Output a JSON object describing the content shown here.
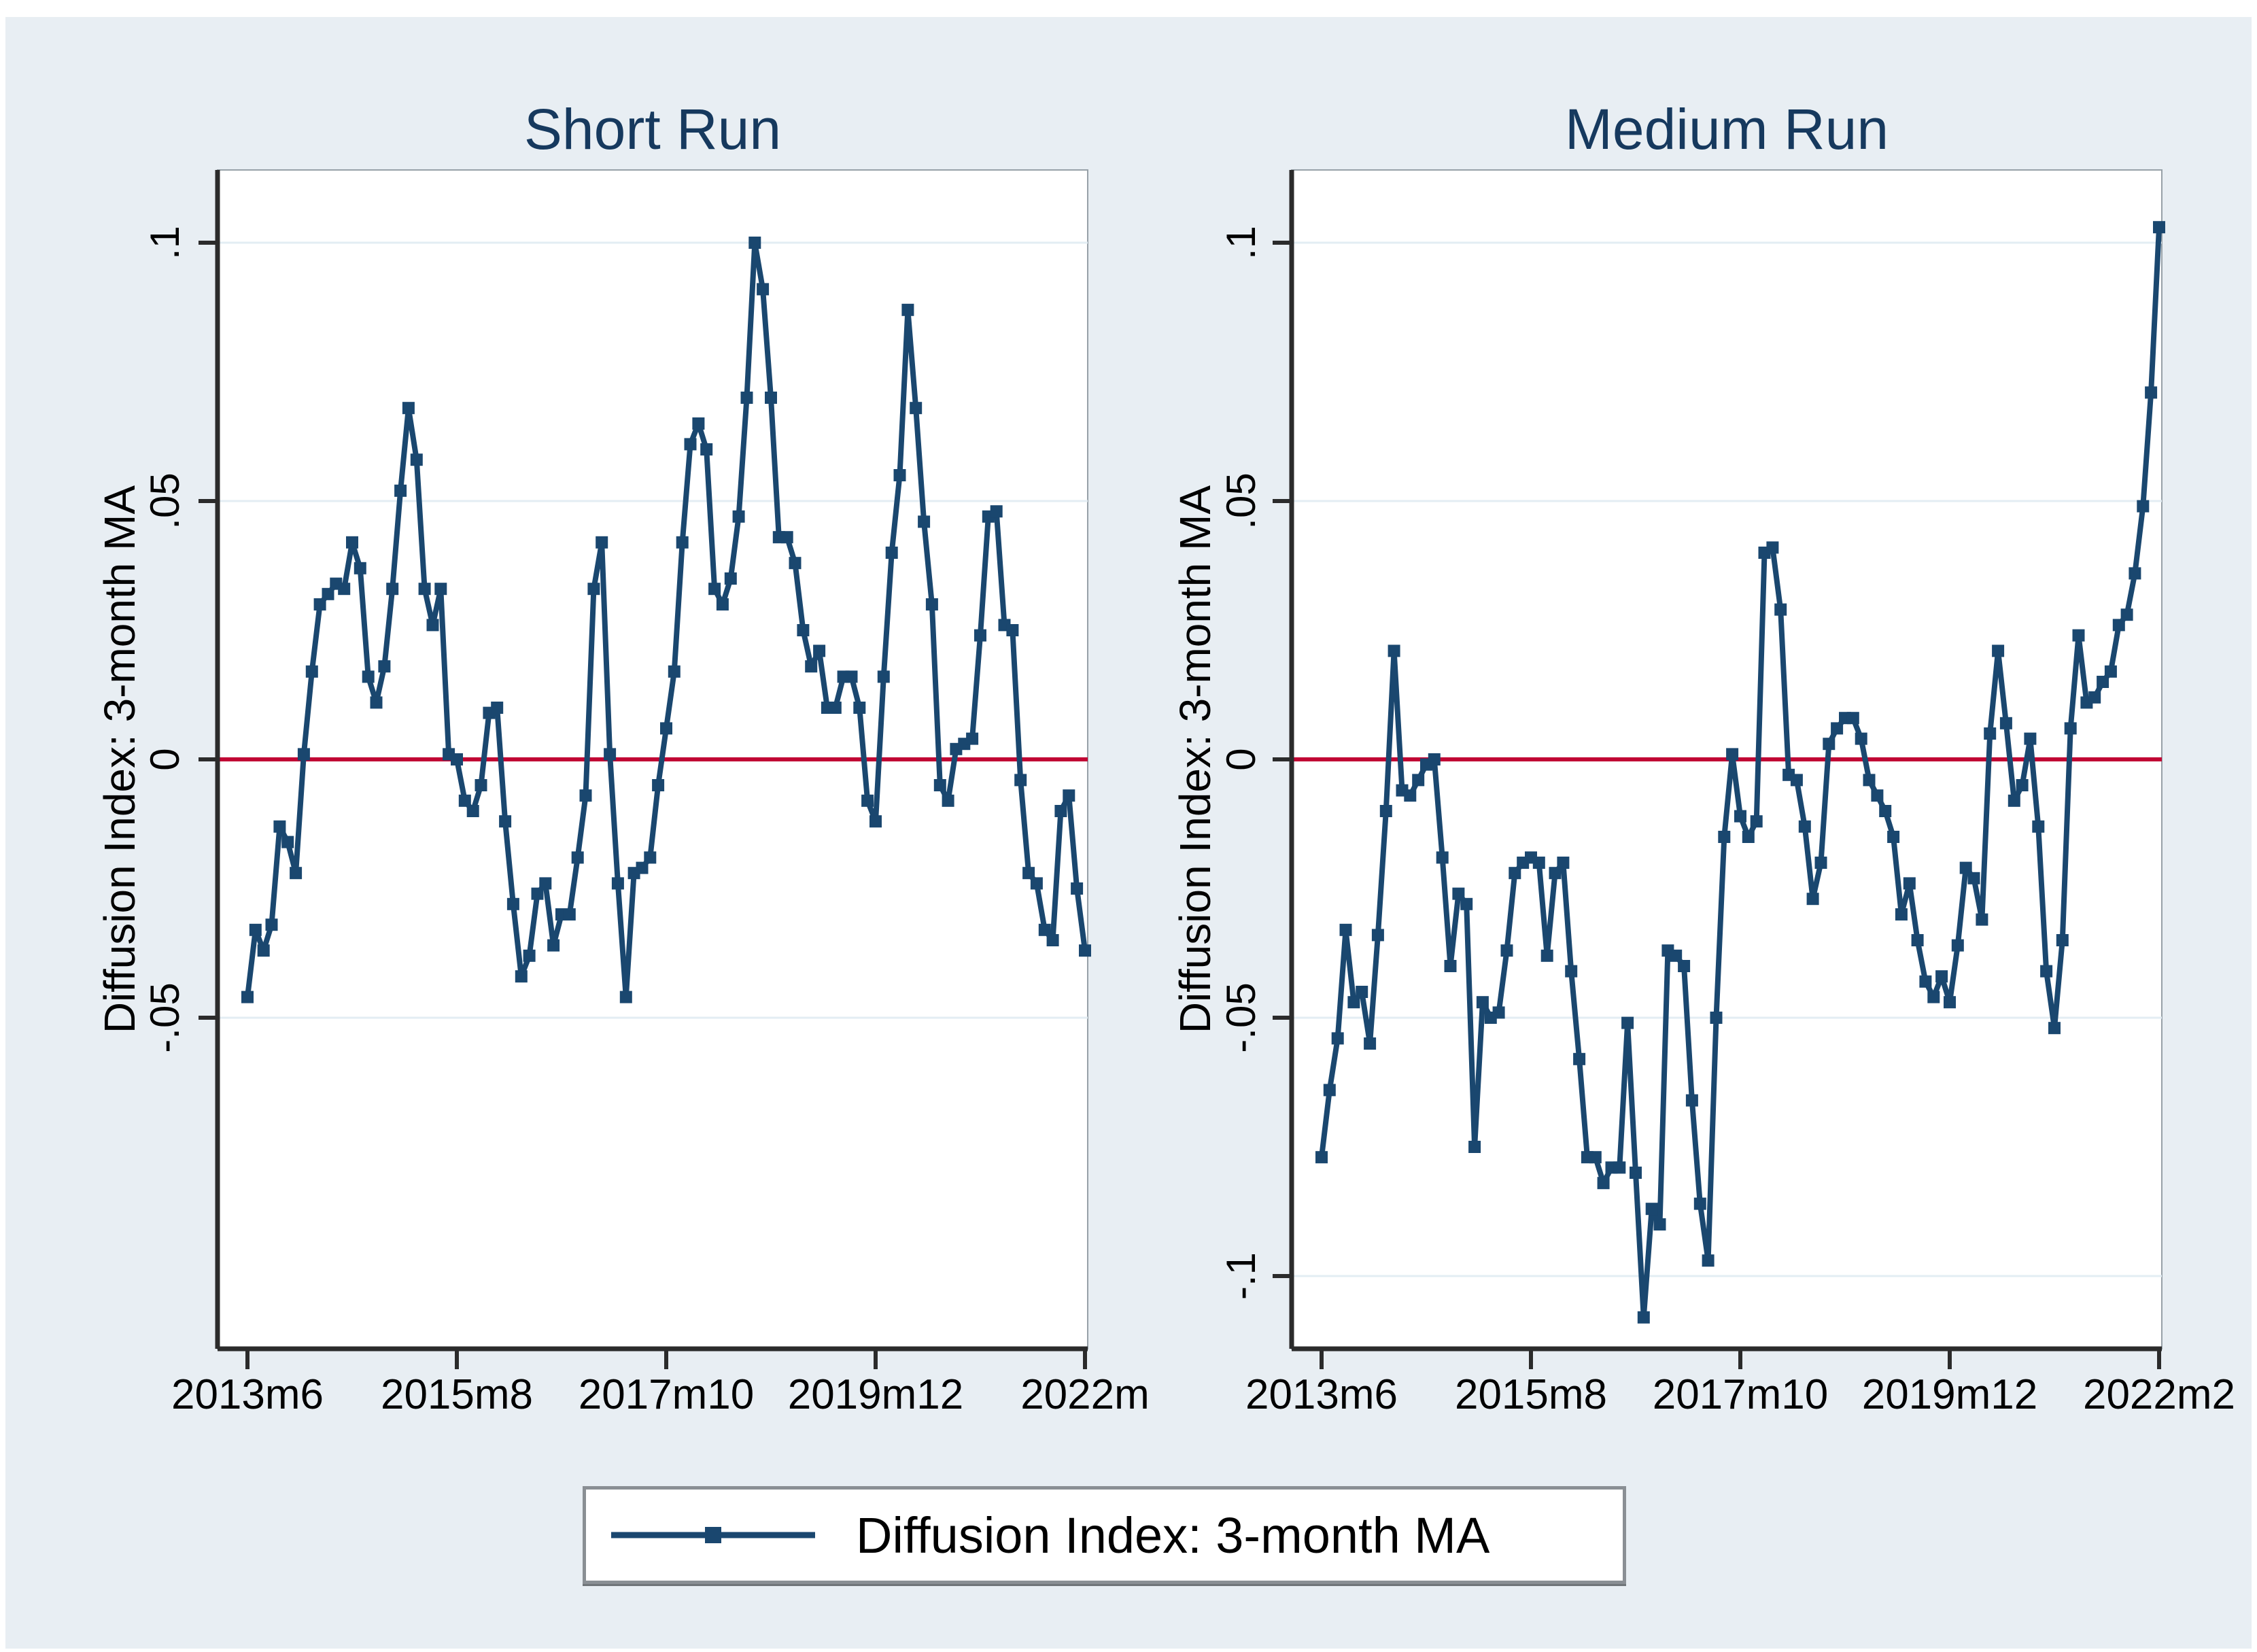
{
  "figure": {
    "kind": "stata-two-panel-time-series",
    "background": "#e8eef3",
    "plot_background": "#ffffff"
  },
  "colors": {
    "series_line": "#1a476f",
    "marker": "#1a476f",
    "zero_reference_line": "#c10534",
    "grid": "#e3edf3",
    "axis": "#2b2b2b",
    "plot_border": "#97a1a8",
    "title_text": "#16395e",
    "tick_text": "#000000"
  },
  "legend": {
    "label": "Diffusion Index: 3-month MA"
  },
  "chart_data": [
    {
      "type": "line",
      "title": "Short Run",
      "ylabel": "Diffusion Index: 3-month MA",
      "x_start": "2013m6",
      "x_end": "2022m2",
      "frequency": "monthly",
      "n_points": 105,
      "x_tick_labels": [
        "2013m6",
        "2015m8",
        "2017m10",
        "2019m12",
        "2022m"
      ],
      "y_tick_labels": [
        ".1",
        ".05",
        "0",
        "-.05"
      ],
      "y_tick_values": [
        0.1,
        0.05,
        0,
        -0.05
      ],
      "grid_values": [
        0.1,
        0.05,
        -0.05
      ],
      "zero_line": 0,
      "ylim": [
        -0.114,
        0.114
      ],
      "legend_position": "bottom-shared",
      "values": [
        -0.046,
        -0.033,
        -0.037,
        -0.032,
        -0.013,
        -0.016,
        -0.022,
        0.001,
        0.017,
        0.03,
        0.032,
        0.034,
        0.033,
        0.042,
        0.037,
        0.016,
        0.011,
        0.018,
        0.033,
        0.052,
        0.068,
        0.058,
        0.033,
        0.026,
        0.033,
        0.001,
        0.0,
        -0.008,
        -0.01,
        -0.005,
        0.009,
        0.01,
        -0.012,
        -0.028,
        -0.042,
        -0.038,
        -0.026,
        -0.024,
        -0.036,
        -0.03,
        -0.03,
        -0.019,
        -0.007,
        0.033,
        0.042,
        0.001,
        -0.024,
        -0.046,
        -0.022,
        -0.021,
        -0.019,
        -0.005,
        0.006,
        0.017,
        0.042,
        0.061,
        0.065,
        0.06,
        0.033,
        0.03,
        0.035,
        0.047,
        0.07,
        0.1,
        0.091,
        0.07,
        0.043,
        0.043,
        0.038,
        0.025,
        0.018,
        0.021,
        0.01,
        0.01,
        0.016,
        0.016,
        0.01,
        -0.008,
        -0.012,
        0.016,
        0.04,
        0.055,
        0.087,
        0.068,
        0.046,
        0.03,
        -0.005,
        -0.008,
        0.002,
        0.003,
        0.004,
        0.024,
        0.047,
        0.048,
        0.026,
        0.025,
        -0.004,
        -0.022,
        -0.024,
        -0.033,
        -0.035,
        -0.01,
        -0.007,
        -0.025,
        -0.037
      ]
    },
    {
      "type": "line",
      "title": "Medium Run",
      "ylabel": "Diffusion Index: 3-month MA",
      "x_start": "2013m6",
      "x_end": "2022m2",
      "frequency": "monthly",
      "n_points": 105,
      "x_tick_labels": [
        "2013m6",
        "2015m8",
        "2017m10",
        "2019m12",
        "2022m2"
      ],
      "y_tick_labels": [
        ".1",
        ".05",
        "0",
        "-.05",
        "-.1"
      ],
      "y_tick_values": [
        0.1,
        0.05,
        0,
        -0.05,
        -0.1
      ],
      "grid_values": [
        0.1,
        0.05,
        -0.05,
        -0.1
      ],
      "zero_line": 0,
      "ylim": [
        -0.114,
        0.114
      ],
      "legend_position": "bottom-shared",
      "values": [
        -0.077,
        -0.064,
        -0.054,
        -0.033,
        -0.047,
        -0.045,
        -0.055,
        -0.034,
        -0.01,
        0.021,
        -0.006,
        -0.007,
        -0.004,
        -0.001,
        0.0,
        -0.019,
        -0.04,
        -0.026,
        -0.028,
        -0.075,
        -0.047,
        -0.05,
        -0.049,
        -0.037,
        -0.022,
        -0.02,
        -0.019,
        -0.02,
        -0.038,
        -0.022,
        -0.02,
        -0.041,
        -0.058,
        -0.077,
        -0.077,
        -0.082,
        -0.079,
        -0.079,
        -0.051,
        -0.08,
        -0.108,
        -0.087,
        -0.09,
        -0.037,
        -0.038,
        -0.04,
        -0.066,
        -0.086,
        -0.097,
        -0.05,
        -0.015,
        0.001,
        -0.011,
        -0.015,
        -0.012,
        0.04,
        0.041,
        0.029,
        -0.003,
        -0.004,
        -0.013,
        -0.027,
        -0.02,
        0.003,
        0.006,
        0.008,
        0.008,
        0.004,
        -0.004,
        -0.007,
        -0.01,
        -0.015,
        -0.03,
        -0.024,
        -0.035,
        -0.043,
        -0.046,
        -0.042,
        -0.047,
        -0.036,
        -0.021,
        -0.023,
        -0.031,
        0.005,
        0.021,
        0.007,
        -0.008,
        -0.005,
        0.004,
        -0.013,
        -0.041,
        -0.052,
        -0.035,
        0.006,
        0.024,
        0.011,
        0.012,
        0.015,
        0.017,
        0.026,
        0.028,
        0.036,
        0.049,
        0.071,
        0.103
      ]
    }
  ]
}
